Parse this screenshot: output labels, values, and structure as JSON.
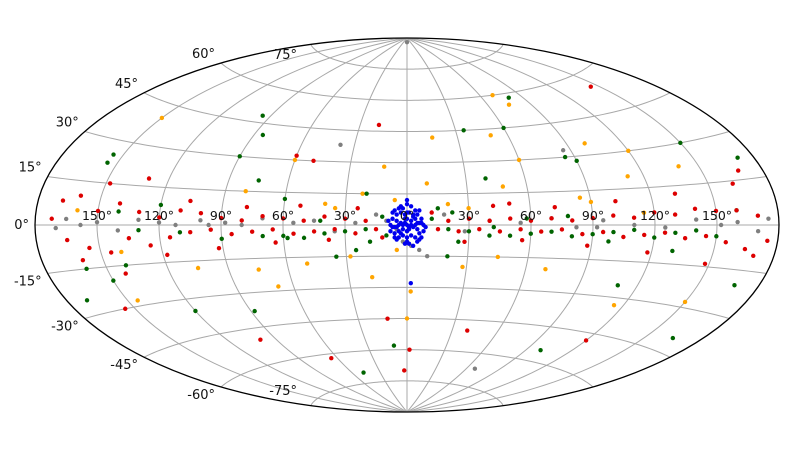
{
  "chart_data": {
    "type": "scatter",
    "projection": "aitoff",
    "grid": true,
    "xlabel": "",
    "ylabel": "",
    "xlim": [
      -180,
      180
    ],
    "ylim": [
      -90,
      90
    ],
    "lat_ticks": [
      "75°",
      "60°",
      "45°",
      "30°",
      "15°",
      "0°",
      "-15°",
      "-30°",
      "-45°",
      "-60°",
      "-75°"
    ],
    "lat_tick_values": [
      75,
      60,
      45,
      30,
      15,
      0,
      -15,
      -30,
      -45,
      -60,
      -75
    ],
    "lon_ticks": [
      "150°",
      "120°",
      "90°",
      "60°",
      "30°",
      "0°",
      "30°",
      "60°",
      "90°",
      "120°",
      "150°"
    ],
    "lon_tick_values": [
      -150,
      -120,
      -90,
      -60,
      -30,
      0,
      30,
      60,
      90,
      120,
      150
    ],
    "series": [
      {
        "color": "#7f7f7f",
        "points": [
          [
            0,
            88
          ],
          [
            -38,
            38
          ],
          [
            -170,
            -1
          ],
          [
            -165,
            2
          ],
          [
            -158,
            0
          ],
          [
            -150,
            1
          ],
          [
            -140,
            -2
          ],
          [
            -130,
            2
          ],
          [
            -120,
            1
          ],
          [
            -112,
            0
          ],
          [
            -100,
            2
          ],
          [
            -88,
            1
          ],
          [
            -80,
            0
          ],
          [
            -70,
            3
          ],
          [
            -55,
            1
          ],
          [
            -45,
            2
          ],
          [
            -35,
            -3
          ],
          [
            -25,
            1
          ],
          [
            -15,
            5
          ],
          [
            -10,
            2
          ],
          [
            -5,
            -2
          ],
          [
            0,
            -3
          ],
          [
            -2,
            -8
          ],
          [
            2,
            -10
          ],
          [
            6,
            -12
          ],
          [
            10,
            -15
          ],
          [
            18,
            5
          ],
          [
            28,
            -3
          ],
          [
            40,
            2
          ],
          [
            55,
            1
          ],
          [
            70,
            3
          ],
          [
            82,
            -1
          ],
          [
            95,
            2
          ],
          [
            110,
            0
          ],
          [
            125,
            -1
          ],
          [
            140,
            2
          ],
          [
            152,
            0
          ],
          [
            160,
            1
          ],
          [
            170,
            -2
          ],
          [
            175,
            2
          ],
          [
            86,
            33
          ],
          [
            92,
            -1
          ],
          [
            -96,
            0
          ],
          [
            68,
            -67
          ]
        ]
      },
      {
        "color": "#ffa500",
        "points": [
          [
            70,
            60
          ],
          [
            75,
            55
          ],
          [
            50,
            42
          ],
          [
            15,
            42
          ],
          [
            60,
            30
          ],
          [
            100,
            35
          ],
          [
            112,
            20
          ],
          [
            -60,
            30
          ],
          [
            -12,
            28
          ],
          [
            -6,
            12
          ],
          [
            -22,
            15
          ],
          [
            -40,
            10
          ],
          [
            20,
            10
          ],
          [
            30,
            8
          ],
          [
            48,
            18
          ],
          [
            90,
            10
          ],
          [
            115,
            5
          ],
          [
            -105,
            -18
          ],
          [
            -75,
            -20
          ],
          [
            -50,
            -18
          ],
          [
            -28,
            -15
          ],
          [
            -18,
            -25
          ],
          [
            -5,
            -12
          ],
          [
            2,
            -32
          ],
          [
            0,
            -45
          ],
          [
            28,
            -20
          ],
          [
            45,
            -15
          ],
          [
            70,
            -20
          ],
          [
            115,
            -33
          ],
          [
            150,
            -28
          ],
          [
            -140,
            -10
          ],
          [
            -145,
            -28
          ],
          [
            -160,
            5
          ],
          [
            -150,
            40
          ],
          [
            -80,
            15
          ],
          [
            -68,
            -28
          ],
          [
            120,
            30
          ],
          [
            85,
            12
          ],
          [
            -35,
            8
          ],
          [
            10,
            20
          ],
          [
            140,
            22
          ]
        ]
      },
      {
        "color": "#006400",
        "points": [
          [
            -155,
            22
          ],
          [
            -155,
            25
          ],
          [
            -140,
            -15
          ],
          [
            -150,
            -20
          ],
          [
            -120,
            8
          ],
          [
            -120,
            -35
          ],
          [
            -95,
            48
          ],
          [
            -90,
            30
          ],
          [
            -75,
            20
          ],
          [
            -60,
            12
          ],
          [
            -35,
            -15
          ],
          [
            -20,
            15
          ],
          [
            -10,
            -5
          ],
          [
            15,
            8
          ],
          [
            20,
            -15
          ],
          [
            40,
            22
          ],
          [
            60,
            45
          ],
          [
            80,
            58
          ],
          [
            85,
            30
          ],
          [
            90,
            28
          ],
          [
            110,
            -25
          ],
          [
            130,
            -10
          ],
          [
            150,
            30
          ],
          [
            160,
            5
          ],
          [
            168,
            -20
          ],
          [
            172,
            22
          ],
          [
            -170,
            -25
          ],
          [
            -160,
            -15
          ],
          [
            -130,
            -2
          ],
          [
            -110,
            -3
          ],
          [
            -90,
            -6
          ],
          [
            -70,
            -5
          ],
          [
            -60,
            -5
          ],
          [
            -50,
            -6
          ],
          [
            -40,
            -4
          ],
          [
            -30,
            -3
          ],
          [
            -20,
            -2
          ],
          [
            20,
            -2
          ],
          [
            30,
            -3
          ],
          [
            40,
            -5
          ],
          [
            50,
            -5
          ],
          [
            60,
            -4
          ],
          [
            70,
            -3
          ],
          [
            80,
            -5
          ],
          [
            90,
            -4
          ],
          [
            100,
            -3
          ],
          [
            110,
            -2
          ],
          [
            120,
            -5
          ],
          [
            130,
            -3
          ],
          [
            140,
            -2
          ],
          [
            150,
            -4
          ],
          [
            -58,
            -6
          ],
          [
            -42,
            2
          ],
          [
            -18,
            -8
          ],
          [
            -12,
            4
          ],
          [
            12,
            3
          ],
          [
            22,
            6
          ],
          [
            42,
            -1
          ],
          [
            58,
            3
          ],
          [
            78,
            4
          ],
          [
            98,
            -7
          ],
          [
            -48,
            -70
          ],
          [
            -88,
            -38
          ],
          [
            -10,
            -58
          ],
          [
            -140,
            5
          ],
          [
            35,
            45
          ],
          [
            -85,
            40
          ],
          [
            165,
            -40
          ],
          [
            100,
            -55
          ],
          [
            -25,
            -12
          ],
          [
            25,
            -8
          ]
        ]
      },
      {
        "color": "#dd0000",
        "points": [
          [
            -165,
            -5
          ],
          [
            -160,
            10
          ],
          [
            -155,
            -8
          ],
          [
            -150,
            5
          ],
          [
            -145,
            -10
          ],
          [
            -140,
            8
          ],
          [
            -135,
            -5
          ],
          [
            -130,
            5
          ],
          [
            -125,
            -8
          ],
          [
            -120,
            3
          ],
          [
            -115,
            -5
          ],
          [
            -110,
            6
          ],
          [
            -105,
            -3
          ],
          [
            -100,
            5
          ],
          [
            -95,
            -2
          ],
          [
            -90,
            3
          ],
          [
            -85,
            -4
          ],
          [
            -80,
            2
          ],
          [
            -75,
            -3
          ],
          [
            -70,
            4
          ],
          [
            -65,
            -2
          ],
          [
            -60,
            3
          ],
          [
            -55,
            -4
          ],
          [
            -50,
            2
          ],
          [
            -45,
            -3
          ],
          [
            -40,
            4
          ],
          [
            -35,
            -2
          ],
          [
            -30,
            3
          ],
          [
            -25,
            -4
          ],
          [
            -20,
            2
          ],
          [
            -15,
            -2
          ],
          [
            15,
            -2
          ],
          [
            20,
            2
          ],
          [
            25,
            -3
          ],
          [
            30,
            3
          ],
          [
            35,
            -2
          ],
          [
            40,
            2
          ],
          [
            45,
            -3
          ],
          [
            50,
            3
          ],
          [
            55,
            -2
          ],
          [
            60,
            2
          ],
          [
            65,
            -3
          ],
          [
            70,
            3
          ],
          [
            75,
            -2
          ],
          [
            80,
            2
          ],
          [
            85,
            -4
          ],
          [
            90,
            3
          ],
          [
            95,
            -3
          ],
          [
            100,
            4
          ],
          [
            105,
            -5
          ],
          [
            110,
            3
          ],
          [
            115,
            -4
          ],
          [
            120,
            5
          ],
          [
            125,
            -3
          ],
          [
            130,
            4
          ],
          [
            135,
            -5
          ],
          [
            140,
            6
          ],
          [
            145,
            -4
          ],
          [
            150,
            5
          ],
          [
            155,
            -6
          ],
          [
            160,
            5
          ],
          [
            165,
            -8
          ],
          [
            170,
            3
          ],
          [
            175,
            -5
          ],
          [
            -172,
            2
          ],
          [
            -168,
            8
          ],
          [
            -160,
            -12
          ],
          [
            -148,
            15
          ],
          [
            -142,
            -18
          ],
          [
            -130,
            18
          ],
          [
            -118,
            -12
          ],
          [
            -106,
            10
          ],
          [
            -92,
            -10
          ],
          [
            -78,
            8
          ],
          [
            -64,
            -8
          ],
          [
            -52,
            9
          ],
          [
            -38,
            -7
          ],
          [
            -24,
            8
          ],
          [
            -12,
            -6
          ],
          [
            12,
            6
          ],
          [
            28,
            -8
          ],
          [
            42,
            9
          ],
          [
            56,
            -7
          ],
          [
            72,
            8
          ],
          [
            88,
            -9
          ],
          [
            102,
            10
          ],
          [
            118,
            -11
          ],
          [
            132,
            12
          ],
          [
            148,
            -14
          ],
          [
            162,
            14
          ],
          [
            170,
            -10
          ],
          [
            -60,
            32
          ],
          [
            -50,
            30
          ],
          [
            -18,
            48
          ],
          [
            -12,
            -45
          ],
          [
            145,
            55
          ],
          [
            -100,
            -50
          ],
          [
            2,
            -60
          ],
          [
            50,
            10
          ],
          [
            -155,
            -30
          ],
          [
            168,
            18
          ],
          [
            -65,
            -62
          ],
          [
            40,
            -50
          ],
          [
            120,
            -48
          ],
          [
            -3,
            -70
          ]
        ]
      },
      {
        "color": "#0000ee",
        "points": [
          [
            -6,
            -1
          ],
          [
            -5,
            2
          ],
          [
            -4,
            -3
          ],
          [
            -3,
            1
          ],
          [
            -2,
            -2
          ],
          [
            -1,
            3
          ],
          [
            0,
            0
          ],
          [
            1,
            -2
          ],
          [
            2,
            2
          ],
          [
            3,
            -1
          ],
          [
            4,
            3
          ],
          [
            5,
            -2
          ],
          [
            6,
            1
          ],
          [
            -7,
            3
          ],
          [
            -6,
            -4
          ],
          [
            -5,
            5
          ],
          [
            -4,
            -6
          ],
          [
            -3,
            6
          ],
          [
            -2,
            -5
          ],
          [
            -1,
            5
          ],
          [
            0,
            -6
          ],
          [
            1,
            6
          ],
          [
            2,
            -5
          ],
          [
            3,
            5
          ],
          [
            4,
            -6
          ],
          [
            5,
            5
          ],
          [
            6,
            -4
          ],
          [
            7,
            3
          ],
          [
            -8,
            0
          ],
          [
            8,
            0
          ],
          [
            -8,
            -3
          ],
          [
            8,
            -3
          ],
          [
            -7,
            6
          ],
          [
            7,
            -6
          ],
          [
            -6,
            7
          ],
          [
            6,
            7
          ],
          [
            -5,
            -7
          ],
          [
            5,
            -8
          ],
          [
            -2,
            8
          ],
          [
            2,
            9
          ],
          [
            0,
            10
          ],
          [
            -1,
            -9
          ],
          [
            1,
            -9
          ],
          [
            0,
            12
          ],
          [
            -3,
            9
          ],
          [
            3,
            -10
          ],
          [
            -9,
            2
          ],
          [
            9,
            -1
          ],
          [
            -4,
            0
          ],
          [
            4,
            0
          ],
          [
            0,
            3
          ],
          [
            0,
            -3
          ],
          [
            -2,
            0
          ],
          [
            2,
            0
          ],
          [
            -3,
            -4
          ],
          [
            3,
            4
          ],
          [
            -5,
            -1
          ],
          [
            5,
            1
          ],
          [
            -1,
            1
          ],
          [
            1,
            -1
          ],
          [
            0,
            6
          ],
          [
            0,
            -8
          ],
          [
            -7,
            -1
          ],
          [
            7,
            1
          ],
          [
            -6,
            -6
          ],
          [
            6,
            -7
          ],
          [
            -4,
            8
          ],
          [
            4,
            7
          ],
          [
            2,
            -28
          ]
        ]
      }
    ]
  }
}
